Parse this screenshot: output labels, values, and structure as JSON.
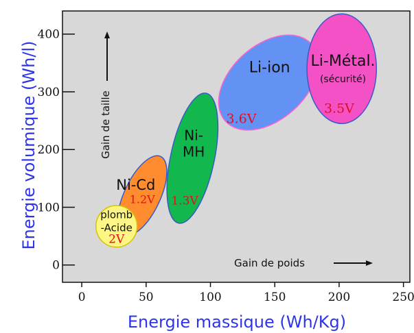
{
  "chart_data": {
    "type": "scatter",
    "title": "",
    "xlabel": "Energie massique  (Wh/Kg)",
    "ylabel": "Energie volumique  (Wh/l)",
    "xlim": [
      -15,
      255
    ],
    "ylim": [
      -30,
      440
    ],
    "x_ticks": [
      "0",
      "50",
      "100",
      "150",
      "200",
      "250"
    ],
    "y_ticks": [
      "0",
      "100",
      "200",
      "300",
      "400"
    ],
    "grid": false,
    "annotations": {
      "size": "Gain de taille",
      "weight": "Gain de poids"
    },
    "series": [
      {
        "name": "Ni-Cd",
        "line2": "",
        "note": "",
        "voltage": "1.2V",
        "color": "#ff8c2e",
        "border": "#3a58c8",
        "cx": 47,
        "cy": 120,
        "rx": 14,
        "ry": 75,
        "rot": 25,
        "label_xy": [
          42,
          130
        ],
        "volt_xy": [
          47,
          107
        ]
      },
      {
        "name": "Ni-",
        "line2": "MH",
        "note": "",
        "voltage": "1.3V",
        "color": "#12b84e",
        "border": "#3a58c8",
        "cx": 86,
        "cy": 185,
        "rx": 17,
        "ry": 115,
        "rot": 12,
        "label_xy": [
          87,
          216
        ],
        "volt_xy": [
          80,
          105
        ]
      },
      {
        "name": "Li-ion",
        "line2": "",
        "note": "",
        "voltage": "3.6V",
        "color": "#6492f4",
        "border": "#ff62d2",
        "cx": 145,
        "cy": 316,
        "rx": 29,
        "ry": 100,
        "rot": 48,
        "label_xy": [
          146,
          334
        ],
        "volt_xy": [
          124,
          246
        ]
      },
      {
        "name": "Li-Métal.",
        "line2": "",
        "note": "(sécurité)",
        "voltage": "3.5V",
        "color": "#f451c6",
        "border": "#3a58c8",
        "cx": 202,
        "cy": 340,
        "rx": 27,
        "ry": 95,
        "rot": 0,
        "label_xy": [
          203,
          345
        ],
        "volt_xy": [
          200,
          264
        ]
      },
      {
        "name": "plomb",
        "line2": "-Acide",
        "note": "",
        "voltage": "2V",
        "color": "#fdf684",
        "border": "#d4c400",
        "cx": 27,
        "cy": 67,
        "rx": 16,
        "ry": 36,
        "rot": 0,
        "label_xy": [
          27,
          81
        ],
        "volt_xy": [
          27,
          38
        ]
      }
    ]
  }
}
